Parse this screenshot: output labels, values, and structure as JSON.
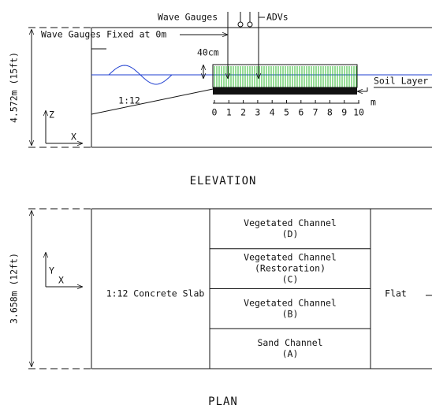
{
  "elevation": {
    "wave_gauges": "Wave Gauges",
    "advs": "ADVs",
    "fixed_label": "Wave Gauges Fixed at 0m",
    "height_label": "40cm",
    "slope": "1:12",
    "soil_layer": "Soil Layer",
    "unit": "m",
    "scale_ticks": [
      0,
      1,
      2,
      3,
      4,
      5,
      6,
      7,
      8,
      9,
      10
    ],
    "depth": "4.572m (15ft)",
    "axis_z": "Z",
    "axis_x": "X",
    "title": "ELEVATION"
  },
  "plan": {
    "width": "3.658m (12ft)",
    "axis_y": "Y",
    "axis_x": "X",
    "slab": "1:12 Concrete Slab",
    "flat": "Flat",
    "title": "PLAN",
    "channels": [
      [
        "Vegetated Channel",
        "(D)"
      ],
      [
        "Vegetated Channel",
        "(Restoration)",
        "(C)"
      ],
      [
        "Vegetated Channel",
        "(B)"
      ],
      [
        "Sand Channel",
        "(A)"
      ]
    ]
  }
}
